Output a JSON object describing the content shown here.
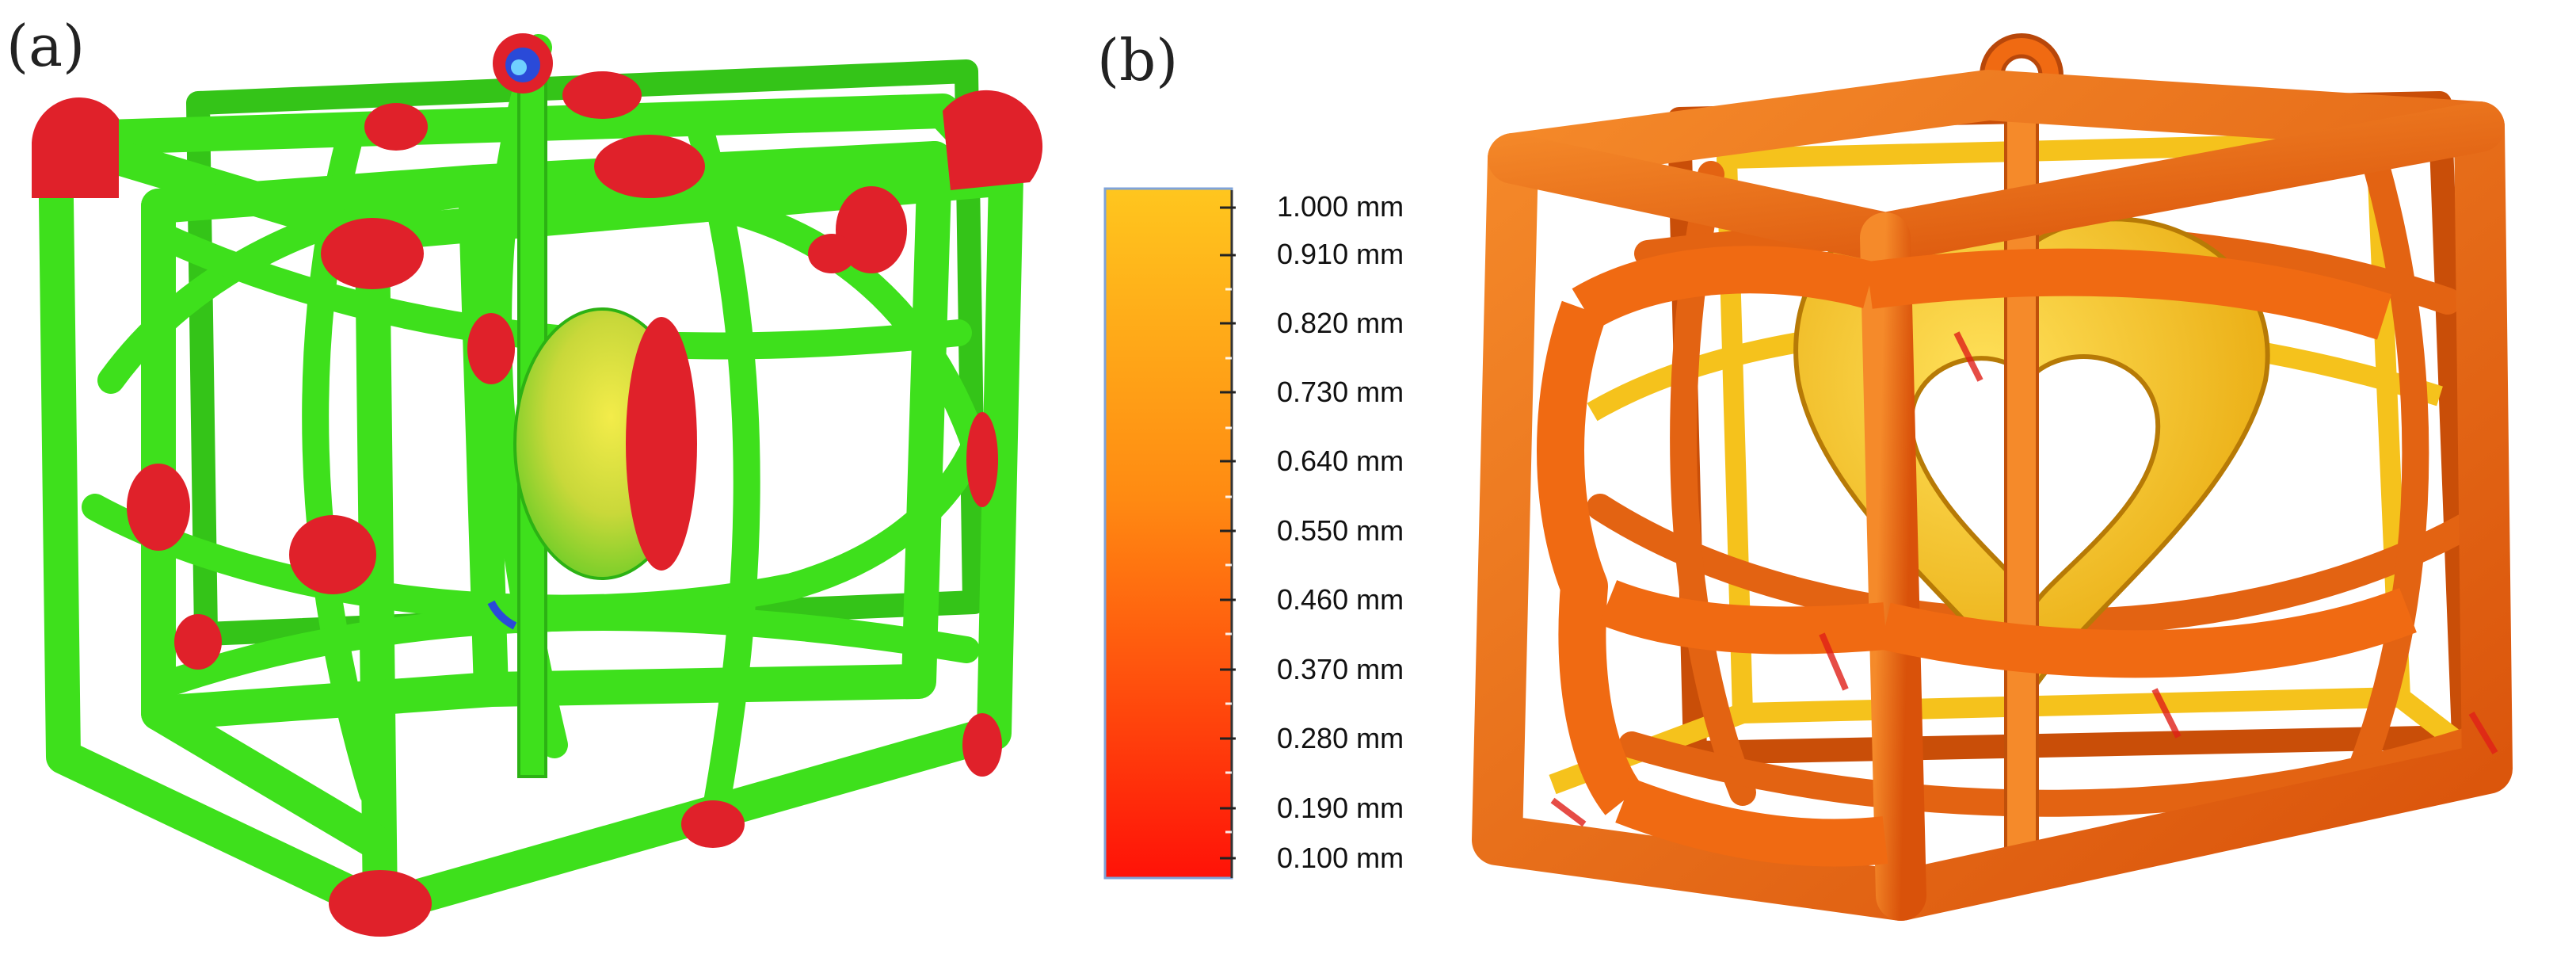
{
  "panels": {
    "a": {
      "label": "(a)"
    },
    "b": {
      "label": "(b)"
    }
  },
  "color_scale": {
    "ticks": [
      "1.000 mm",
      "0.910 mm",
      "0.820 mm",
      "0.730 mm",
      "0.640 mm",
      "0.550 mm",
      "0.460 mm",
      "0.370 mm",
      "0.280 mm",
      "0.190 mm",
      "0.100 mm"
    ],
    "top_color": "#ffc21a",
    "mid_color": "#ff7a10",
    "bottom_color": "#ff1a0a"
  },
  "colors": {
    "frame_green": "#3ee01c",
    "thin_red": "#e0212a",
    "thick_blue": "#2a4ad8",
    "orange_body": "#f06a12",
    "yellow_core": "#f5c21c"
  }
}
